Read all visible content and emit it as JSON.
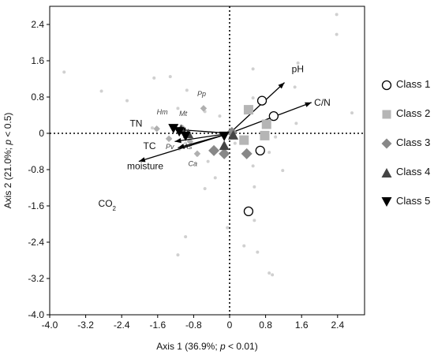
{
  "chart_data": {
    "type": "scatter",
    "xlabel_main": "Axis 1 (36.9%; ",
    "xlabel_p": "p",
    "xlabel_rest": " < 0.01)",
    "ylabel_main": "Axis 2 (21.0%; ",
    "ylabel_p": "p",
    "ylabel_rest": " < 0.5)",
    "xlim": [
      -4.0,
      3.0
    ],
    "ylim": [
      -4.0,
      2.8
    ],
    "x_ticks": [
      -4.0,
      -3.2,
      -2.4,
      -1.6,
      -0.8,
      0,
      0.8,
      1.6,
      2.4
    ],
    "x_tick_labels": [
      "-4.0",
      "-3.2",
      "-2.4",
      "-1.6",
      "-0.8",
      "0",
      "0.8",
      "1.6",
      "2.4"
    ],
    "y_ticks": [
      2.4,
      1.6,
      0.8,
      0,
      -0.8,
      -1.6,
      -2.4,
      -3.2,
      -4.0
    ],
    "y_tick_labels": [
      "2.4",
      "1.6",
      "0.8",
      "0",
      "-0.8",
      "-1.6",
      "-2.4",
      "-3.2",
      "-4.0"
    ],
    "grid": false,
    "zero_lines": "dotted",
    "legend_position": "right",
    "legend_title": "",
    "background_points": [
      {
        "x": 2.38,
        "y": 2.62
      },
      {
        "x": 2.38,
        "y": 2.18
      },
      {
        "x": -3.68,
        "y": 1.35
      },
      {
        "x": -2.85,
        "y": 0.93
      },
      {
        "x": -2.28,
        "y": 0.72
      },
      {
        "x": -1.68,
        "y": 1.22
      },
      {
        "x": -1.32,
        "y": 1.25
      },
      {
        "x": -0.95,
        "y": 0.95
      },
      {
        "x": 1.52,
        "y": 1.55
      },
      {
        "x": 1.45,
        "y": 1.02
      },
      {
        "x": 2.72,
        "y": 0.45
      },
      {
        "x": 0.52,
        "y": 0.78
      },
      {
        "x": 1.48,
        "y": 0.22
      },
      {
        "x": 1.02,
        "y": -0.08
      },
      {
        "x": 0.88,
        "y": -0.42
      },
      {
        "x": 0.52,
        "y": -0.72
      },
      {
        "x": 1.18,
        "y": -0.82
      },
      {
        "x": 0.55,
        "y": -1.18
      },
      {
        "x": -0.32,
        "y": -0.98
      },
      {
        "x": -0.55,
        "y": -1.22
      },
      {
        "x": -0.98,
        "y": -0.22
      },
      {
        "x": -1.32,
        "y": -0.12
      },
      {
        "x": -1.72,
        "y": 0.12
      },
      {
        "x": -0.48,
        "y": -0.62
      },
      {
        "x": -0.72,
        "y": -0.48
      },
      {
        "x": -1.12,
        "y": -0.35
      },
      {
        "x": -0.22,
        "y": 0.38
      },
      {
        "x": -1.15,
        "y": 0.55
      },
      {
        "x": -0.55,
        "y": 0.48
      },
      {
        "x": -0.98,
        "y": -2.28
      },
      {
        "x": -1.15,
        "y": -2.68
      },
      {
        "x": -0.05,
        "y": -2.08
      },
      {
        "x": 0.32,
        "y": -2.48
      },
      {
        "x": 0.55,
        "y": -1.92
      },
      {
        "x": 0.62,
        "y": -2.62
      },
      {
        "x": 0.88,
        "y": -3.08
      },
      {
        "x": 0.95,
        "y": -3.12
      },
      {
        "x": 0.52,
        "y": 1.42
      },
      {
        "x": 0.12,
        "y": -0.22
      }
    ],
    "species_labels": [
      {
        "label": "Hm",
        "x": -1.62,
        "y": 0.42
      },
      {
        "label": "Pp",
        "x": -0.72,
        "y": 0.82
      },
      {
        "label": "Mt",
        "x": -1.12,
        "y": 0.38
      },
      {
        "label": "Pv",
        "x": -1.42,
        "y": -0.35
      },
      {
        "label": "As",
        "x": -1.02,
        "y": -0.35
      },
      {
        "label": "Ca",
        "x": -0.92,
        "y": -0.72
      }
    ],
    "species_points": [
      {
        "label": "Hm",
        "x": -1.62,
        "y": 0.1
      },
      {
        "label": "Pp",
        "x": -0.58,
        "y": 0.55
      },
      {
        "label": "Mt",
        "x": -1.05,
        "y": 0.12
      },
      {
        "label": "Pv",
        "x": -1.35,
        "y": -0.12
      },
      {
        "label": "As",
        "x": -0.88,
        "y": -0.18
      },
      {
        "label": "Ca",
        "x": -0.72,
        "y": -0.45
      }
    ],
    "vectors": [
      {
        "label": "pH",
        "x": 1.22,
        "y": 1.12,
        "label_x": 1.38,
        "label_y": 1.42
      },
      {
        "label": "C/N",
        "x": 1.82,
        "y": 0.68,
        "label_x": 1.88,
        "label_y": 0.68
      },
      {
        "label": "TN",
        "x": -1.12,
        "y": 0.08,
        "label_x": -2.22,
        "label_y": 0.22
      },
      {
        "label": "TC",
        "x": -1.22,
        "y": -0.18,
        "label_x": -1.92,
        "label_y": -0.28
      },
      {
        "label": "moisture",
        "x": -1.15,
        "y": -0.32,
        "label_x": -2.28,
        "label_y": -0.72
      },
      {
        "label": "CO2",
        "x": -2.02,
        "y": -0.62,
        "label_x": -2.92,
        "label_y": -1.55
      }
    ],
    "series": [
      {
        "name": "Class 1",
        "marker": "circle-open",
        "points": [
          {
            "x": 0.72,
            "y": 0.72
          },
          {
            "x": 0.98,
            "y": 0.38
          },
          {
            "x": 0.68,
            "y": -0.38
          },
          {
            "x": 0.42,
            "y": -1.72
          }
        ]
      },
      {
        "name": "Class 2",
        "marker": "square",
        "points": [
          {
            "x": 0.42,
            "y": 0.52
          },
          {
            "x": 0.82,
            "y": 0.2
          },
          {
            "x": 0.32,
            "y": -0.15
          },
          {
            "x": 0.78,
            "y": -0.05
          }
        ]
      },
      {
        "name": "Class 3",
        "marker": "diamond",
        "points": [
          {
            "x": 0.05,
            "y": 0.02
          },
          {
            "x": -0.35,
            "y": -0.38
          },
          {
            "x": 0.38,
            "y": -0.45
          },
          {
            "x": -0.12,
            "y": -0.45
          }
        ]
      },
      {
        "name": "Class 4",
        "marker": "triangle-up",
        "points": [
          {
            "x": -1.08,
            "y": 0.08
          },
          {
            "x": -0.92,
            "y": -0.02
          },
          {
            "x": 0.08,
            "y": -0.05
          },
          {
            "x": -0.12,
            "y": -0.28
          }
        ]
      },
      {
        "name": "Class 5",
        "marker": "triangle-down",
        "points": [
          {
            "x": -1.12,
            "y": 0.05
          },
          {
            "x": -0.98,
            "y": -0.05
          },
          {
            "x": -1.25,
            "y": 0.12
          },
          {
            "x": -0.12,
            "y": -0.05
          }
        ]
      }
    ]
  },
  "legend": [
    {
      "name": "Class 1",
      "marker": "circle-open"
    },
    {
      "name": "Class 2",
      "marker": "square"
    },
    {
      "name": "Class 3",
      "marker": "diamond"
    },
    {
      "name": "Class 4",
      "marker": "triangle-up"
    },
    {
      "name": "Class 5",
      "marker": "triangle-down"
    }
  ],
  "colors": {
    "background_points": "#d0d0d0",
    "species": "#b0b0b0",
    "class_fill_gray": "#b5b5b5",
    "class_fill_dark": "#444444",
    "class_fill_black": "#000000",
    "vector": "#000000"
  }
}
